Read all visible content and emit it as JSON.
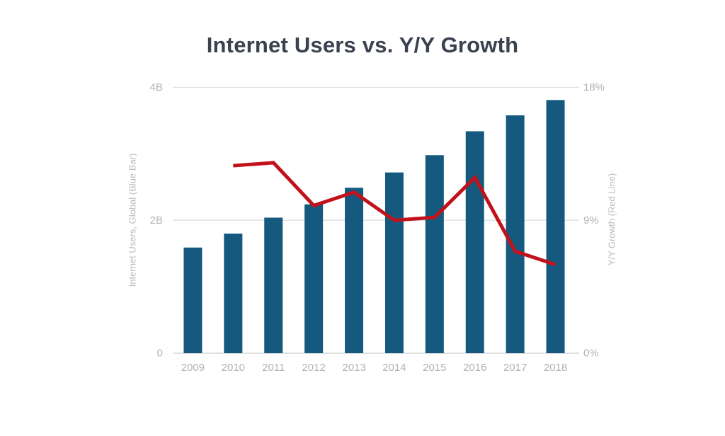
{
  "chart_data": {
    "type": "combo",
    "title": "Internet Users vs. Y/Y Growth",
    "categories": [
      "2009",
      "2010",
      "2011",
      "2012",
      "2013",
      "2014",
      "2015",
      "2016",
      "2017",
      "2018"
    ],
    "series": [
      {
        "name": "Internet Users, Global (Blue Bar)",
        "type": "bar",
        "axis": "left",
        "unit": "billions",
        "values": [
          1.59,
          1.8,
          2.04,
          2.24,
          2.49,
          2.72,
          2.98,
          3.34,
          3.58,
          3.81
        ]
      },
      {
        "name": "Y/Y Growth (Red Line)",
        "type": "line",
        "axis": "right",
        "unit": "%",
        "values": [
          null,
          12.7,
          12.9,
          10.0,
          10.9,
          9.0,
          9.2,
          11.9,
          6.9,
          6.0
        ]
      }
    ],
    "left_axis": {
      "label": "Internet Users, Global (Blue Bar)",
      "min": 0,
      "max": 4,
      "ticks": [
        {
          "value": 0,
          "label": "0"
        },
        {
          "value": 2,
          "label": "2B"
        },
        {
          "value": 4,
          "label": "4B"
        }
      ]
    },
    "right_axis": {
      "label": "Y/Y Growth (Red Line)",
      "min": 0,
      "max": 18,
      "ticks": [
        {
          "value": 0,
          "label": "0%"
        },
        {
          "value": 9,
          "label": "9%"
        },
        {
          "value": 18,
          "label": "18%"
        }
      ]
    },
    "colors": {
      "bar": "#155A7E",
      "line": "#C1121C",
      "title": "#39424E",
      "tick_label": "#AFB3B7",
      "axis_title": "#B6BCC1",
      "gridline": "#E2E2E2",
      "baseline": "#D6D6D6"
    },
    "grid": "horizontal",
    "legend": "none"
  }
}
